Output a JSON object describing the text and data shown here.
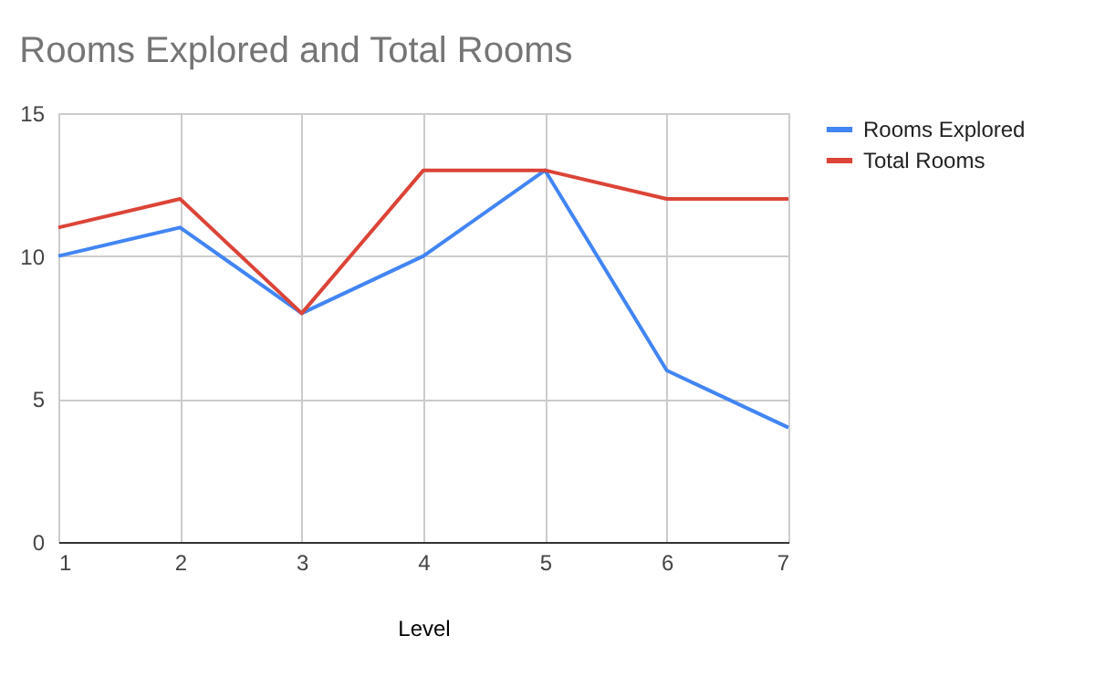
{
  "chart_data": {
    "type": "line",
    "title": "Rooms Explored and Total Rooms",
    "xlabel": "Level",
    "x": [
      1,
      2,
      3,
      4,
      5,
      6,
      7
    ],
    "series": [
      {
        "name": "Rooms Explored",
        "color": "#4285f4",
        "values": [
          10,
          11,
          8,
          10,
          13,
          6,
          4
        ]
      },
      {
        "name": "Total Rooms",
        "color": "#db4437",
        "values": [
          11,
          12,
          8,
          13,
          13,
          12,
          12
        ]
      }
    ],
    "xlim": [
      1,
      7
    ],
    "xticks": [
      1,
      2,
      3,
      4,
      5,
      6,
      7
    ],
    "ylim": [
      0,
      15
    ],
    "yticks": [
      0,
      5,
      10,
      15
    ],
    "grid": true,
    "legend": "top right",
    "marker": "none",
    "line_style": "solid"
  }
}
